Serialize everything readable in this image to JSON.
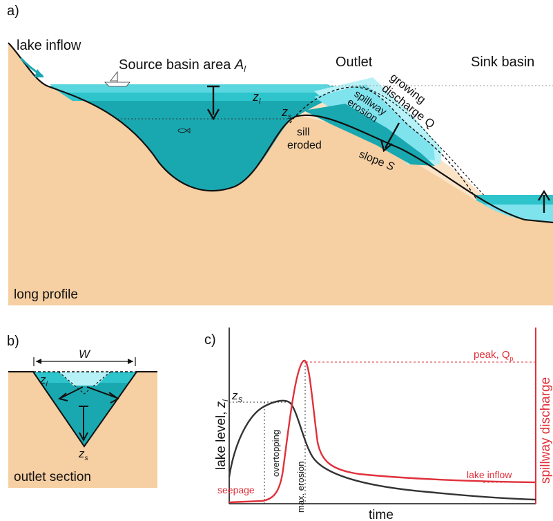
{
  "panels": {
    "a": {
      "letter": "a)",
      "lake_inflow": "lake inflow",
      "source_basin_label": "Source basin area ",
      "source_basin_symbol": "A",
      "source_basin_sub": "l",
      "outlet_label": "Outlet",
      "sink_basin_label": "Sink basin",
      "zl_symbol": "z",
      "zl_sub": "l",
      "zs_symbol": "z",
      "zs_sub": "s",
      "sill_eroded_1": "sill",
      "sill_eroded_2": "eroded",
      "growing_1": "growing",
      "growing_2": "discharge Q",
      "spillway_1": "spillway",
      "spillway_2": "erosion",
      "slope_label": "slope ",
      "slope_symbol": "S",
      "long_profile": "long profile"
    },
    "b": {
      "letter": "b)",
      "width_symbol": "W",
      "zl_symbol": "z",
      "zl_sub": "l",
      "zs_symbol": "z",
      "zs_sub": "s",
      "outlet_section": "outlet section"
    },
    "c": {
      "letter": "c)",
      "y_axis_label": "lake level, ",
      "y_axis_symbol": "z",
      "y_axis_sub": "l",
      "x_axis_label": "time",
      "right_axis_label": "spillway discharge",
      "zs_symbol": "z",
      "zs_sub": "S",
      "peak_label": "peak, ",
      "peak_symbol": "Q",
      "peak_sub": "p",
      "lake_inflow": "lake inflow",
      "seepage": "seepage",
      "overtopping": "overtopping",
      "max_erosion": "max. erosion"
    }
  },
  "colors": {
    "sand": "#f6cfa2",
    "water_dark": "#1aa8b0",
    "water_mid": "#2ec4cc",
    "water_light": "#7fe3ee",
    "water_pale": "#b6f1f7",
    "lake_level_curve": "#333333",
    "discharge_curve": "#e0303a"
  }
}
